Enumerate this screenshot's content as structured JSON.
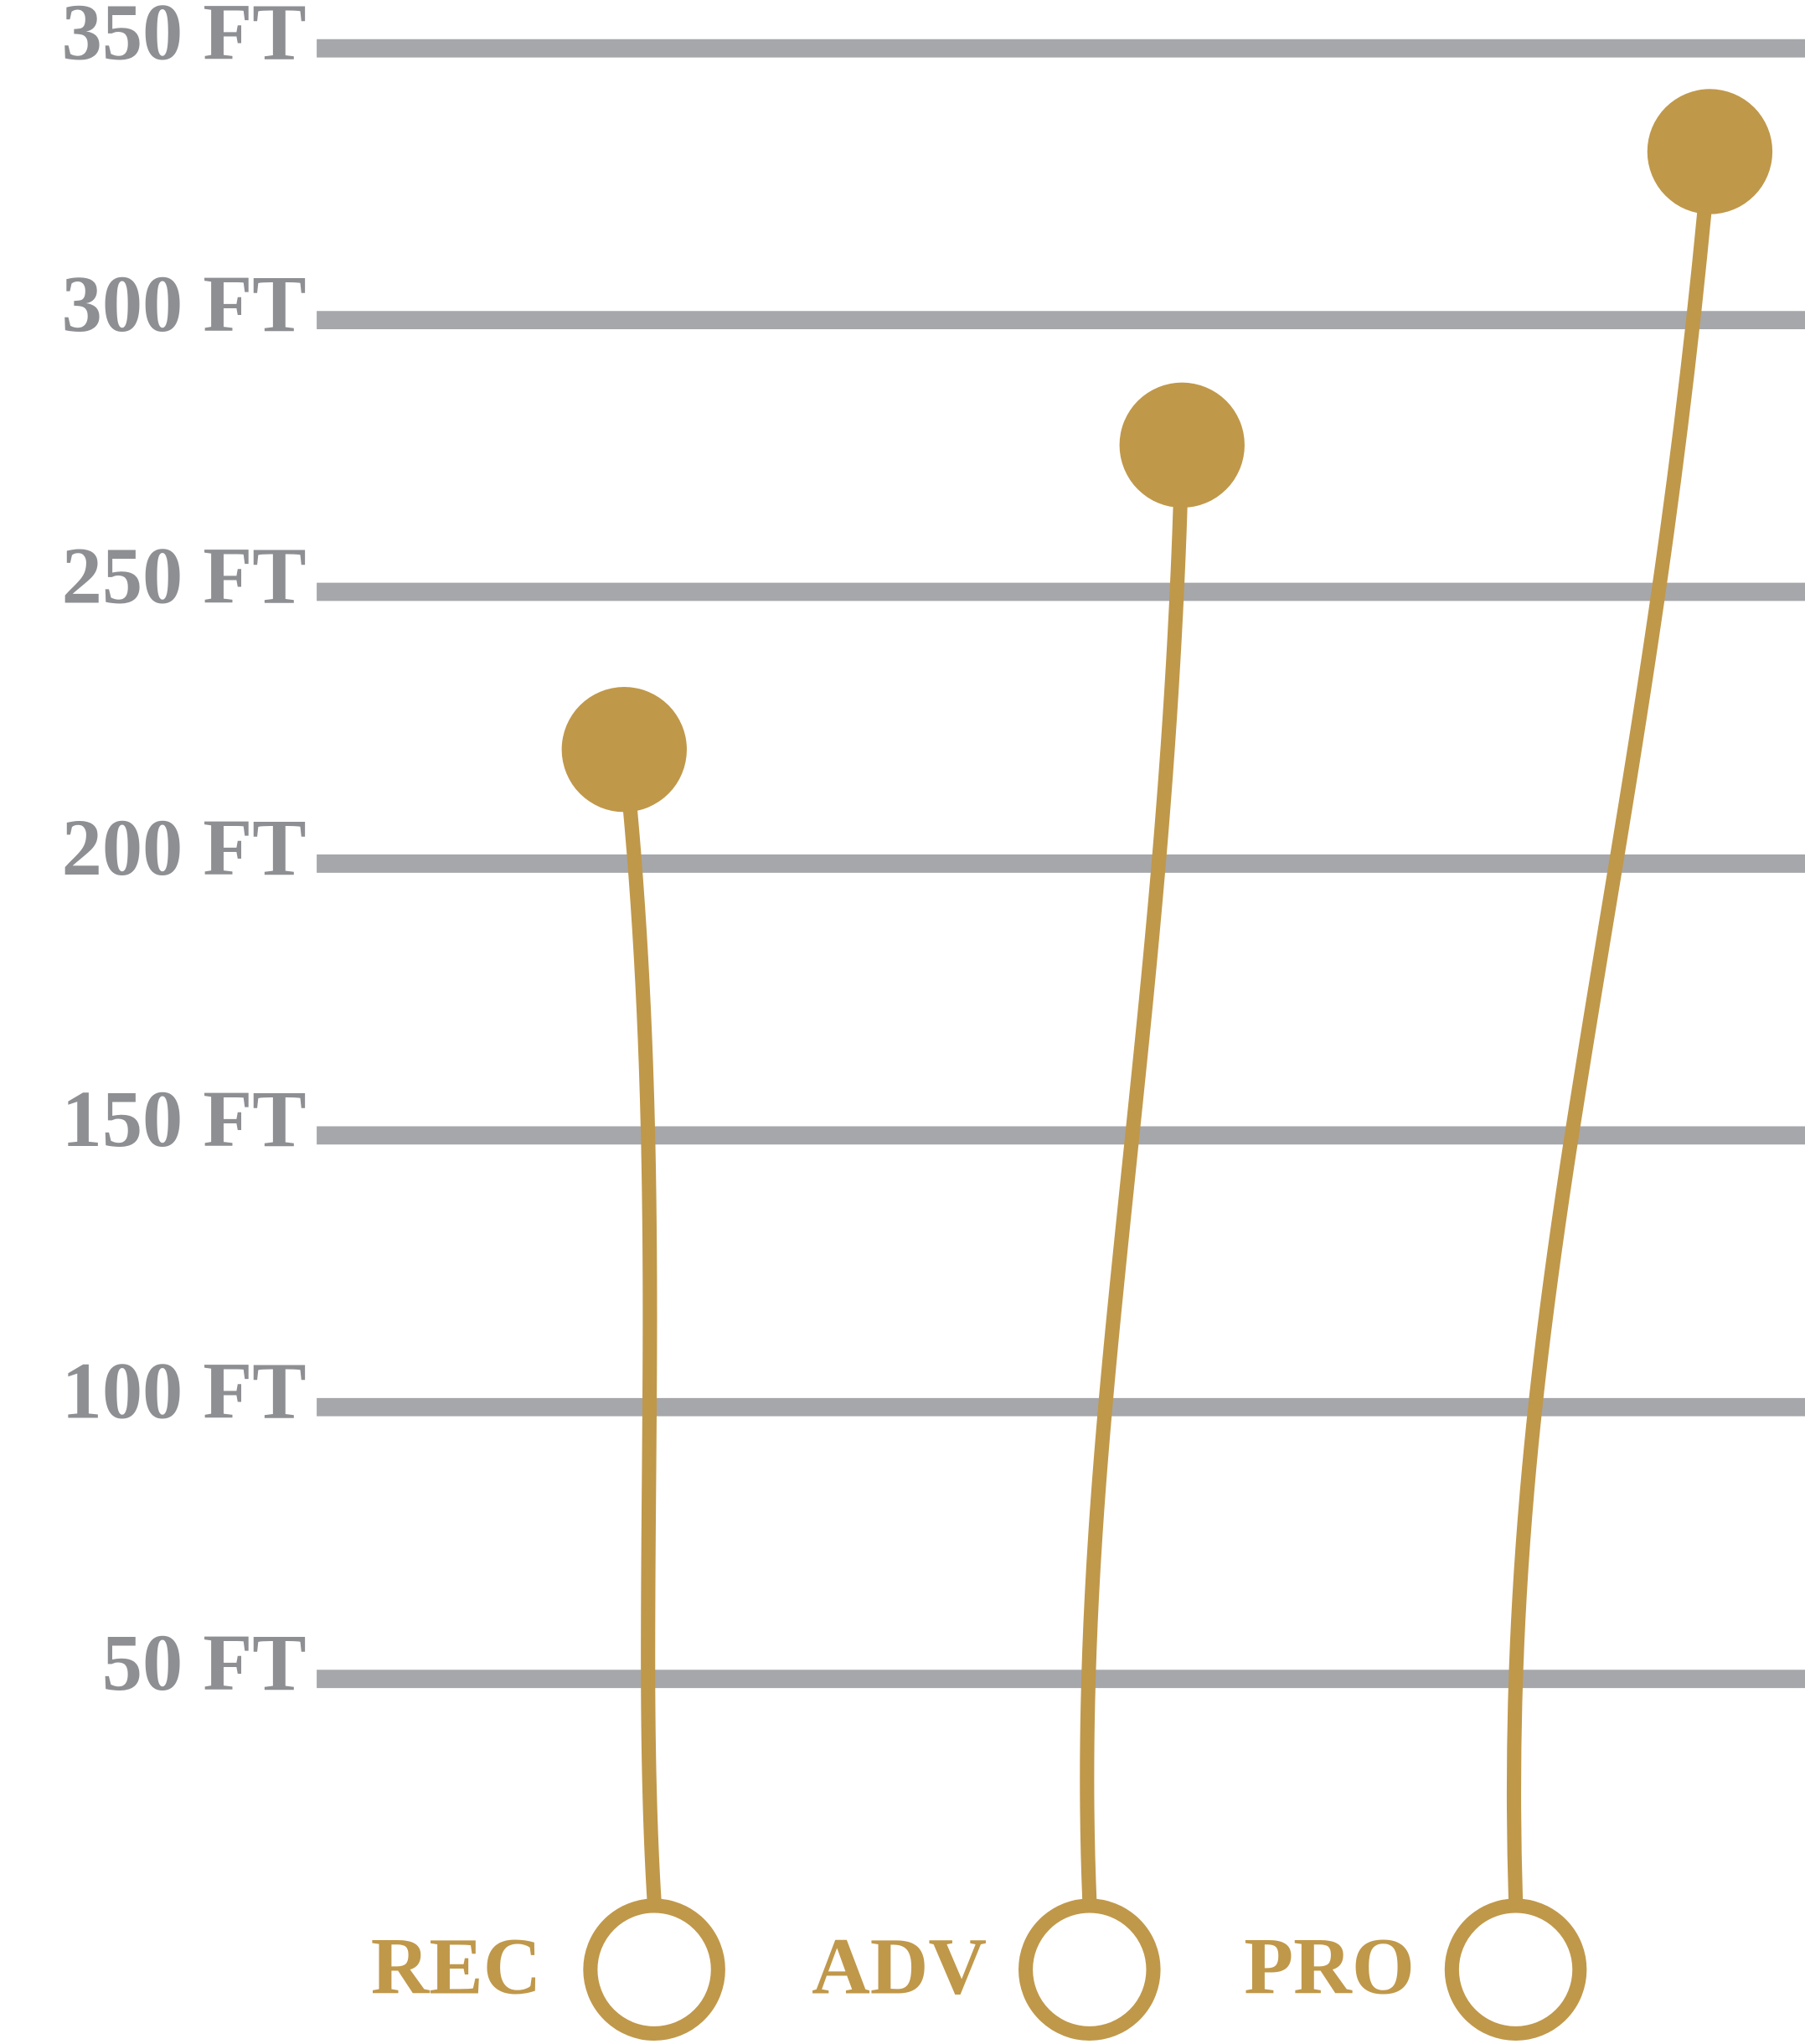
{
  "chart_data": {
    "type": "lollipop",
    "categories": [
      "REC",
      "ADV",
      "PRO"
    ],
    "values": [
      221,
      277,
      331
    ],
    "color": "#c0984a",
    "ylim": [
      0,
      350
    ],
    "yticks": [
      {
        "value": 50,
        "label": "50 FT"
      },
      {
        "value": 100,
        "label": "100 FT"
      },
      {
        "value": 150,
        "label": "150 FT"
      },
      {
        "value": 200,
        "label": "200 FT"
      },
      {
        "value": 250,
        "label": "250 FT"
      },
      {
        "value": 300,
        "label": "300 FT"
      },
      {
        "value": 350,
        "label": "350 FT"
      }
    ],
    "grid": true
  }
}
